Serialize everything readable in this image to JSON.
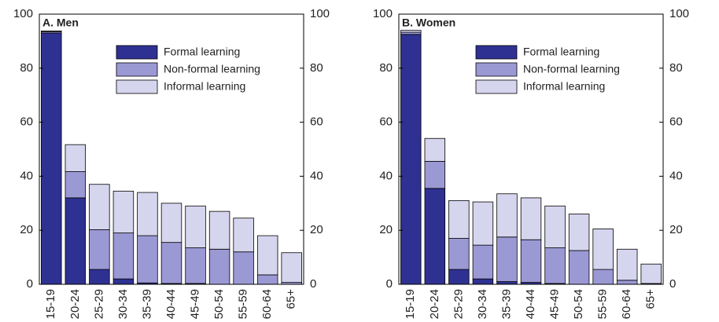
{
  "chart_data": [
    {
      "type": "bar",
      "stacked": true,
      "title": "A. Men",
      "categories": [
        "15-19",
        "20-24",
        "25-29",
        "30-34",
        "35-39",
        "40-44",
        "45-49",
        "50-54",
        "55-59",
        "60-64",
        "65+"
      ],
      "series": [
        {
          "name": "Formal learning",
          "color": "#2e3192",
          "values": [
            93,
            32,
            5.5,
            2,
            0.5,
            0.3,
            0.3,
            0,
            0,
            0,
            0
          ]
        },
        {
          "name": "Non-formal learning",
          "color": "#9b99d4",
          "values": [
            0.5,
            9.7,
            14.7,
            17,
            17.5,
            15.2,
            13.2,
            13,
            12,
            3.5,
            0.7
          ]
        },
        {
          "name": "Informal learning",
          "color": "#d6d5ee",
          "values": [
            0.3,
            10,
            16.8,
            15.5,
            16,
            14.5,
            15.5,
            14,
            12.5,
            14.5,
            11
          ]
        }
      ],
      "ylim": [
        0,
        100
      ],
      "yticks": [
        0,
        20,
        40,
        60,
        80,
        100
      ],
      "y2lim": [
        0,
        100
      ],
      "y2ticks": [
        0,
        20,
        40,
        60,
        80,
        100
      ],
      "legend": "upper right"
    },
    {
      "type": "bar",
      "stacked": true,
      "title": "B. Women",
      "categories": [
        "15-19",
        "20-24",
        "25-29",
        "30-34",
        "35-39",
        "40-44",
        "45-49",
        "50-54",
        "55-59",
        "60-64",
        "65+"
      ],
      "series": [
        {
          "name": "Formal learning",
          "color": "#2e3192",
          "values": [
            92.5,
            35.5,
            5.5,
            2,
            1,
            0.7,
            0.3,
            0,
            0,
            0,
            0
          ]
        },
        {
          "name": "Non-formal learning",
          "color": "#9b99d4",
          "values": [
            0.8,
            10,
            11.5,
            12.5,
            16.5,
            15.8,
            13.2,
            12.5,
            5.5,
            1.5,
            0.3
          ]
        },
        {
          "name": "Informal learning",
          "color": "#d6d5ee",
          "values": [
            0.7,
            8.5,
            14,
            16,
            16,
            15.5,
            15.5,
            13.5,
            15,
            11.5,
            7.2
          ]
        }
      ],
      "ylim": [
        0,
        100
      ],
      "yticks": [
        0,
        20,
        40,
        60,
        80,
        100
      ],
      "y2lim": [
        0,
        100
      ],
      "y2ticks": [
        0,
        20,
        40,
        60,
        80,
        100
      ],
      "legend": "upper right"
    }
  ]
}
